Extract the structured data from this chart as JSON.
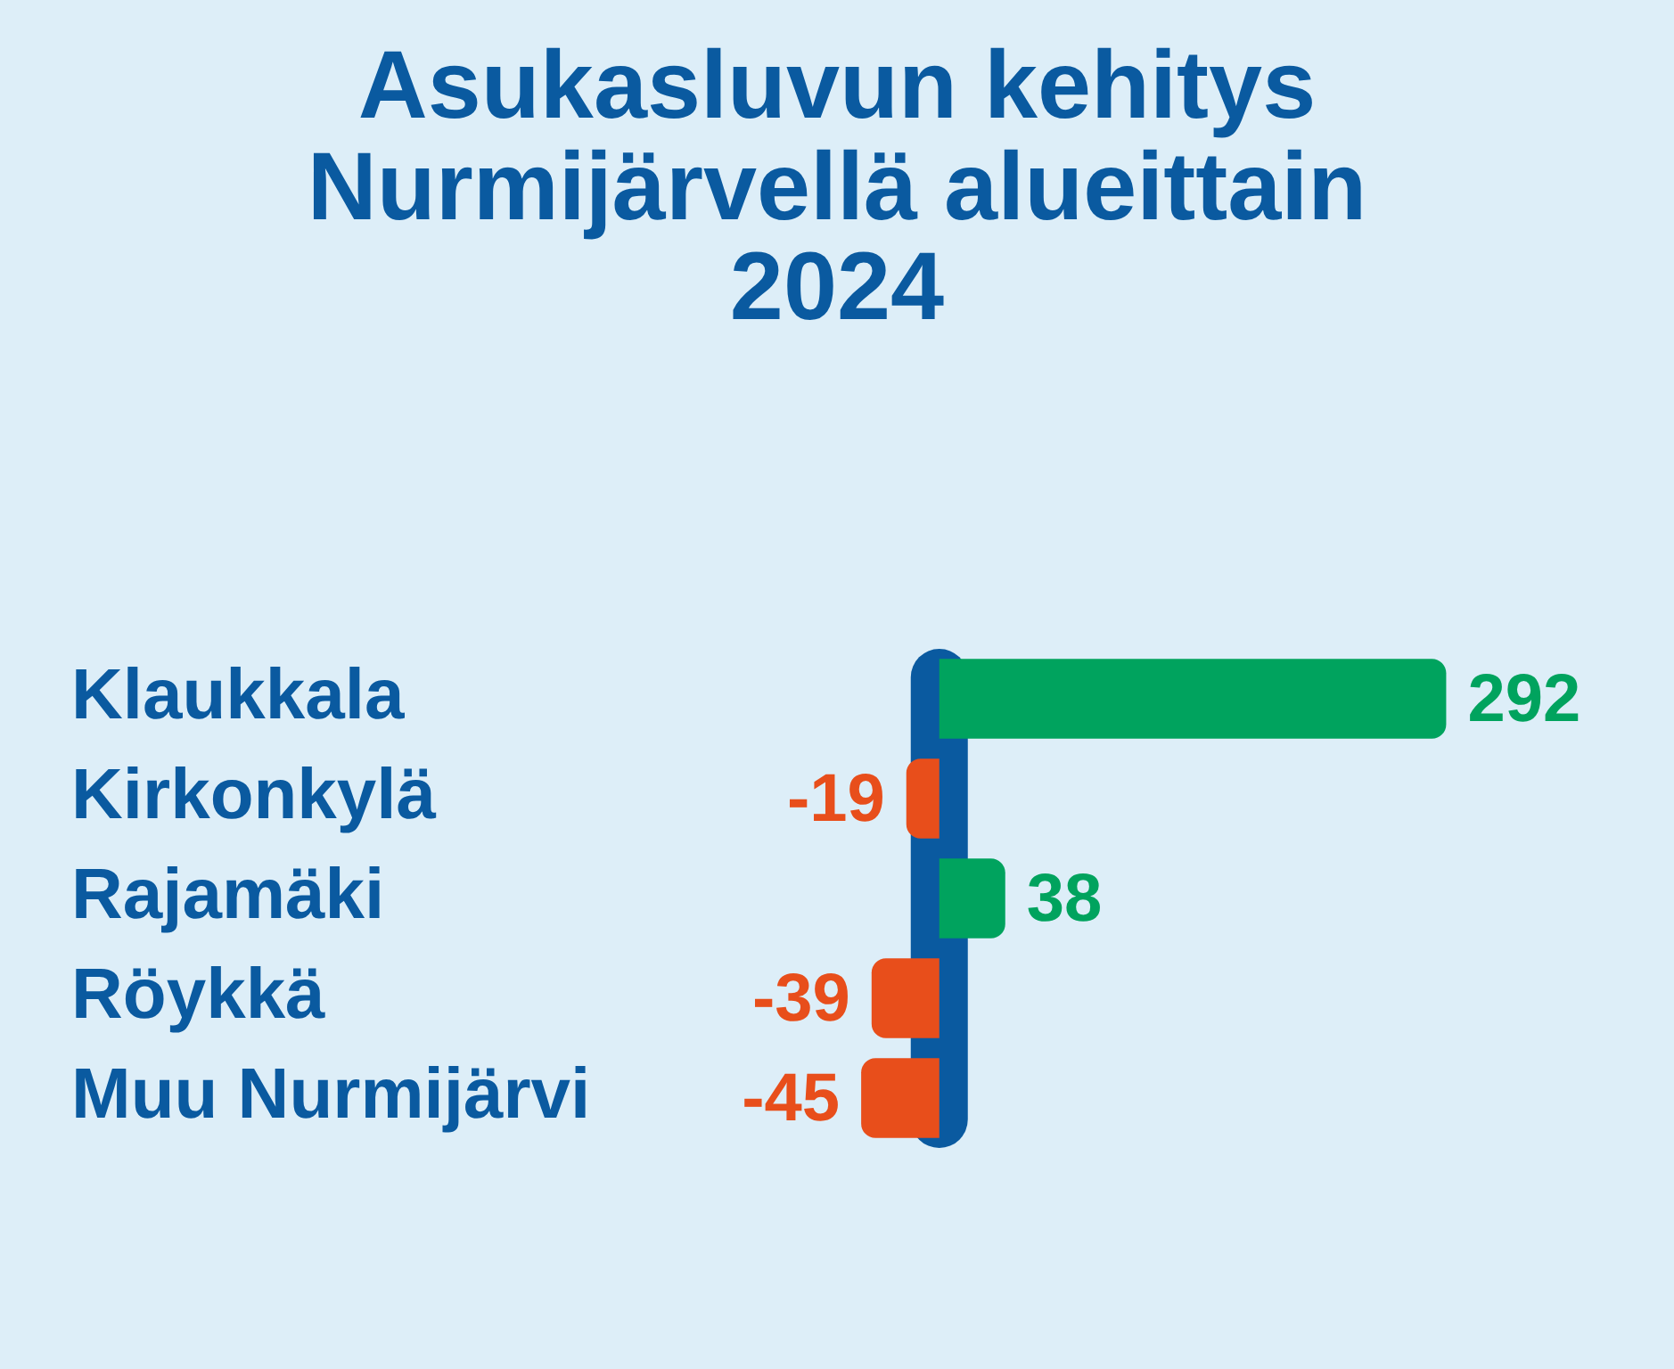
{
  "chart_data": {
    "type": "bar",
    "orientation": "horizontal",
    "title": "Asukasluvun kehitys Nurmijärvellä alueittain 2024",
    "categories": [
      "Klaukkala",
      "Kirkonkylä",
      "Rajamäki",
      "Röykkä",
      "Muu Nurmijärvi"
    ],
    "values": [
      292,
      -19,
      38,
      -39,
      -45
    ],
    "colors": [
      "#00a35e",
      "#e84e1b",
      "#00a35e",
      "#e84e1b",
      "#e84e1b"
    ],
    "ref_lines": [
      {
        "axis": "x",
        "value": 0,
        "color": "#0a5aa0"
      }
    ],
    "tick_labels": "y",
    "data_labels": true
  }
}
